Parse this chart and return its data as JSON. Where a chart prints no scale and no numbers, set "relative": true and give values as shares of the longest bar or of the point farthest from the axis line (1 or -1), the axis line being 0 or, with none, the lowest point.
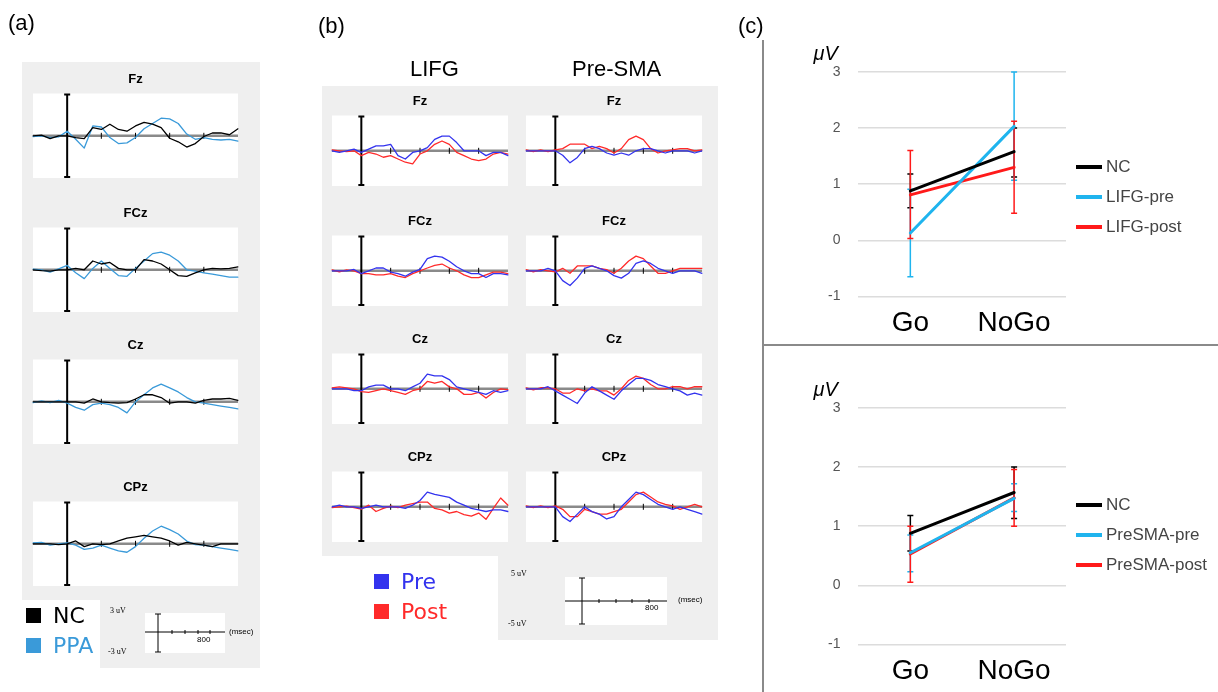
{
  "chart_data": [
    {
      "type": "line",
      "title": "Fz",
      "relative": true,
      "marker": "none",
      "line_style": "solid",
      "annotations": [
        "(a)"
      ],
      "categories": [
        null,
        null,
        null,
        null,
        null,
        null,
        null,
        null,
        null,
        null,
        null,
        null,
        null,
        null,
        null,
        null,
        null,
        null,
        null,
        null,
        null,
        null,
        null,
        null,
        null
      ],
      "series": [
        {
          "color": "#000000",
          "values": [
            0,
            0.04,
            -0.16,
            0,
            0,
            -0.1,
            -0.16,
            0.46,
            0.36,
            0.66,
            0.36,
            0.26,
            0.56,
            0.76,
            0.66,
            0.46,
            -0.14,
            -0.34,
            -0.64,
            -0.44,
            -0.04,
            0.16,
            0.16,
            0.06,
            0.4
          ]
        },
        {
          "color": "#3a9ad9",
          "values": [
            -0.04,
            0,
            -0.1,
            -0.06,
            0.26,
            -0.2,
            -0.7,
            0.56,
            0.5,
            -0.1,
            -0.44,
            -0.4,
            -0.1,
            0.4,
            0.7,
            1,
            0.96,
            0.7,
            0.1,
            -0.2,
            -0.1,
            -0.2,
            -0.24,
            -0.2,
            -0.3
          ]
        }
      ]
    },
    {
      "type": "line",
      "title": "FCz",
      "relative": true,
      "marker": "none",
      "line_style": "solid",
      "categories": [
        null,
        null,
        null,
        null,
        null,
        null,
        null,
        null,
        null,
        null,
        null,
        null,
        null,
        null,
        null,
        null,
        null,
        null,
        null,
        null,
        null,
        null,
        null,
        null,
        null
      ],
      "series": [
        {
          "color": "#000000",
          "values": [
            0,
            -0.05,
            -0.08,
            0,
            0,
            0.08,
            0,
            0.5,
            0.33,
            0.42,
            0.08,
            0,
            0,
            0.58,
            0.5,
            0.33,
            0,
            -0.33,
            -0.37,
            -0.17,
            0,
            0.08,
            0.05,
            0.08,
            0.17
          ]
        },
        {
          "color": "#3a9ad9",
          "values": [
            0.04,
            0,
            -0.13,
            0.05,
            0.25,
            -0.17,
            -0.5,
            0.08,
            0.5,
            0.08,
            -0.33,
            -0.37,
            0.08,
            0.5,
            0.92,
            1,
            0.83,
            0.5,
            0,
            -0.08,
            -0.17,
            -0.25,
            -0.33,
            -0.42,
            -0.42
          ]
        }
      ]
    },
    {
      "type": "line",
      "title": "Cz",
      "relative": true,
      "marker": "none",
      "line_style": "solid",
      "categories": [
        null,
        null,
        null,
        null,
        null,
        null,
        null,
        null,
        null,
        null,
        null,
        null,
        null,
        null,
        null,
        null,
        null,
        null,
        null,
        null,
        null,
        null,
        null,
        null,
        null
      ],
      "series": [
        {
          "color": "#000000",
          "values": [
            0,
            0,
            0,
            0,
            0,
            0,
            -0.08,
            0.16,
            0,
            -0.05,
            -0.08,
            -0.05,
            0.16,
            0.4,
            0.4,
            0.24,
            -0.08,
            0,
            0,
            -0.08,
            0.08,
            0.16,
            0.16,
            0.19,
            0.08
          ]
        },
        {
          "color": "#3a9ad9",
          "values": [
            -0.05,
            0.05,
            -0.05,
            0.08,
            -0.08,
            -0.32,
            -0.48,
            -0.16,
            -0.08,
            -0.16,
            -0.32,
            -0.63,
            0,
            0.4,
            0.79,
            1,
            0.79,
            0.56,
            0.24,
            0,
            -0.08,
            -0.16,
            -0.24,
            -0.32,
            -0.4
          ]
        }
      ]
    },
    {
      "type": "line",
      "title": "CPz",
      "relative": true,
      "marker": "none",
      "line_style": "solid",
      "legend": "bottom",
      "annotations": [
        "3 uV",
        "-3 uV",
        "800",
        "(msec)"
      ],
      "categories": [
        null,
        null,
        null,
        null,
        null,
        null,
        null,
        null,
        null,
        null,
        null,
        null,
        null,
        null,
        null,
        null,
        null,
        null,
        null,
        null,
        null,
        null,
        null,
        null,
        null
      ],
      "series": [
        {
          "name": "NC",
          "color": "#000000",
          "values": [
            0,
            0,
            0,
            -0.05,
            0,
            0.16,
            -0.16,
            0,
            -0.05,
            0,
            0.16,
            0.32,
            0.4,
            0.48,
            0.4,
            0.32,
            0.16,
            -0.08,
            0.08,
            0,
            -0.08,
            -0.16,
            0,
            0,
            0
          ]
        },
        {
          "name": "PPA",
          "color": "#3a9ad9",
          "values": [
            0.05,
            0.08,
            -0.08,
            0,
            0.05,
            -0.08,
            -0.32,
            -0.24,
            -0.08,
            -0.24,
            -0.4,
            -0.48,
            -0.16,
            0.32,
            0.73,
            1,
            0.81,
            0.56,
            0.16,
            -0.05,
            -0.08,
            -0.16,
            -0.24,
            -0.32,
            -0.4
          ]
        }
      ]
    },
    {
      "type": "line",
      "title": "Fz",
      "relative": true,
      "marker": "none",
      "line_style": "solid",
      "annotations": [
        "(b)",
        "LIFG"
      ],
      "categories": [
        null,
        null,
        null,
        null,
        null,
        null,
        null,
        null,
        null,
        null,
        null,
        null,
        null,
        null,
        null,
        null,
        null,
        null,
        null,
        null,
        null,
        null,
        null,
        null,
        null
      ],
      "series": [
        {
          "color": "#3333ee",
          "values": [
            0,
            -0.11,
            0,
            0.11,
            -0.11,
            0.11,
            0.33,
            0.33,
            0.44,
            -0.33,
            -0.56,
            -0.11,
            0,
            0.22,
            0.78,
            1,
            1,
            0.56,
            0,
            0,
            0,
            -0.33,
            -0.11,
            -0.11,
            -0.33
          ]
        },
        {
          "color": "#ff2a2a",
          "values": [
            0.06,
            0,
            -0.06,
            0,
            -0.33,
            -0.11,
            -0.22,
            -0.44,
            -0.33,
            -0.56,
            -0.78,
            -0.89,
            -0.22,
            0,
            0.44,
            0.67,
            0.44,
            -0.11,
            -0.33,
            -0.56,
            -0.67,
            -0.56,
            -0.22,
            -0.11,
            -0.22
          ]
        }
      ]
    },
    {
      "type": "line",
      "title": "Fz",
      "relative": true,
      "marker": "none",
      "line_style": "solid",
      "annotations": [
        "Pre-SMA"
      ],
      "categories": [
        null,
        null,
        null,
        null,
        null,
        null,
        null,
        null,
        null,
        null,
        null,
        null,
        null,
        null,
        null,
        null,
        null,
        null,
        null,
        null,
        null,
        null,
        null,
        null,
        null
      ],
      "series": [
        {
          "color": "#3333ee",
          "values": [
            0,
            0,
            0,
            0,
            0,
            -0.3,
            -0.82,
            -0.45,
            0.15,
            0.3,
            0.15,
            -0.15,
            -0.3,
            -0.15,
            -0.3,
            0,
            0.15,
            0.15,
            0,
            -0.15,
            0,
            0,
            0,
            -0.15,
            0
          ]
        },
        {
          "color": "#ff2a2a",
          "values": [
            0.06,
            -0.06,
            0.06,
            -0.06,
            0.06,
            0.15,
            0.45,
            0.45,
            0.45,
            0.15,
            0.3,
            0.15,
            -0.15,
            0.15,
            0.76,
            1,
            0.76,
            0.15,
            -0.15,
            0,
            0.06,
            0.15,
            0.15,
            0,
            0.06
          ]
        }
      ]
    },
    {
      "type": "line",
      "title": "FCz",
      "relative": true,
      "marker": "none",
      "line_style": "solid",
      "categories": [
        null,
        null,
        null,
        null,
        null,
        null,
        null,
        null,
        null,
        null,
        null,
        null,
        null,
        null,
        null,
        null,
        null,
        null,
        null,
        null,
        null,
        null,
        null,
        null,
        null
      ],
      "series": [
        {
          "color": "#3333ee",
          "values": [
            0,
            0,
            0,
            0.09,
            -0.19,
            0,
            0.19,
            0.19,
            -0.09,
            -0.19,
            -0.37,
            -0.09,
            0.09,
            0.83,
            1,
            0.93,
            0.65,
            0.28,
            0,
            -0.19,
            -0.19,
            -0.46,
            -0.19,
            -0.19,
            -0.28
          ]
        },
        {
          "color": "#ff2a2a",
          "values": [
            0.07,
            -0.07,
            0.07,
            0,
            -0.19,
            -0.19,
            -0.28,
            -0.28,
            -0.19,
            -0.37,
            -0.46,
            -0.19,
            0,
            0.19,
            0.37,
            0.46,
            0.19,
            0,
            -0.28,
            -0.46,
            -0.46,
            -0.28,
            -0.09,
            -0.09,
            -0.19
          ]
        }
      ]
    },
    {
      "type": "line",
      "title": "FCz",
      "relative": true,
      "marker": "none",
      "line_style": "solid",
      "categories": [
        null,
        null,
        null,
        null,
        null,
        null,
        null,
        null,
        null,
        null,
        null,
        null,
        null,
        null,
        null,
        null,
        null,
        null,
        null,
        null,
        null,
        null,
        null,
        null,
        null
      ],
      "series": [
        {
          "color": "#3333ee",
          "values": [
            0,
            0,
            0,
            0.17,
            0,
            -0.67,
            -1,
            -0.5,
            0.17,
            0.33,
            0.17,
            0,
            -0.33,
            -0.5,
            -0.17,
            0.5,
            0.67,
            0.5,
            0.17,
            0,
            -0.17,
            0,
            0,
            0,
            -0.17
          ]
        },
        {
          "color": "#ff2a2a",
          "values": [
            0.08,
            -0.08,
            0.08,
            0,
            -0.08,
            0.17,
            -0.17,
            0.33,
            0.33,
            0.33,
            0.17,
            0.08,
            -0.17,
            0.17,
            0.67,
            1,
            0.83,
            0.33,
            -0.17,
            -0.17,
            0,
            0.17,
            0.17,
            0.17,
            0.17
          ]
        }
      ]
    },
    {
      "type": "line",
      "title": "Cz",
      "relative": true,
      "marker": "none",
      "line_style": "solid",
      "categories": [
        null,
        null,
        null,
        null,
        null,
        null,
        null,
        null,
        null,
        null,
        null,
        null,
        null,
        null,
        null,
        null,
        null,
        null,
        null,
        null,
        null,
        null,
        null,
        null,
        null
      ],
      "series": [
        {
          "color": "#3333ee",
          "values": [
            0,
            0,
            0,
            -0.13,
            -0.13,
            0.13,
            0.25,
            0.25,
            0,
            0,
            -0.13,
            0.13,
            0.38,
            1,
            0.88,
            0.88,
            0.63,
            0.13,
            0,
            -0.13,
            -0.25,
            -0.38,
            -0.13,
            -0.25,
            -0.13
          ]
        },
        {
          "color": "#ff2a2a",
          "values": [
            0.06,
            0.13,
            0.06,
            0,
            -0.19,
            -0.25,
            -0.13,
            0,
            -0.13,
            -0.25,
            -0.38,
            -0.13,
            0,
            0.5,
            0.38,
            0.5,
            0.13,
            0,
            -0.38,
            -0.38,
            -0.25,
            -0.63,
            -0.25,
            0,
            -0.06
          ]
        }
      ]
    },
    {
      "type": "line",
      "title": "Cz",
      "relative": true,
      "marker": "none",
      "line_style": "solid",
      "categories": [
        null,
        null,
        null,
        null,
        null,
        null,
        null,
        null,
        null,
        null,
        null,
        null,
        null,
        null,
        null,
        null,
        null,
        null,
        null,
        null,
        null,
        null,
        null,
        null,
        null
      ],
      "series": [
        {
          "color": "#3333ee",
          "values": [
            0,
            0,
            0,
            0.14,
            -0.14,
            -0.43,
            -0.71,
            -1,
            -0.29,
            0.14,
            -0.14,
            -0.43,
            -0.71,
            -0.14,
            0.29,
            0.71,
            0.71,
            0.57,
            0.29,
            0.14,
            0,
            -0.14,
            -0.43,
            -0.29,
            -0.43
          ]
        },
        {
          "color": "#ff2a2a",
          "values": [
            0.07,
            -0.07,
            0.07,
            0.07,
            0,
            -0.29,
            -0.29,
            0,
            -0.14,
            0,
            -0.14,
            -0.14,
            -0.43,
            0,
            0.57,
            0.86,
            0.71,
            0.29,
            0,
            0,
            0.14,
            0.14,
            0,
            0.14,
            0.14
          ]
        }
      ]
    },
    {
      "type": "line",
      "title": "CPz",
      "relative": true,
      "marker": "none",
      "line_style": "solid",
      "legend": "bottom",
      "categories": [
        null,
        null,
        null,
        null,
        null,
        null,
        null,
        null,
        null,
        null,
        null,
        null,
        null,
        null,
        null,
        null,
        null,
        null,
        null,
        null,
        null,
        null,
        null,
        null,
        null
      ],
      "series": [
        {
          "name": "Pre",
          "color": "#3333ee",
          "values": [
            0,
            0.11,
            0,
            0,
            -0.11,
            0,
            0.11,
            0,
            0,
            0,
            -0.11,
            0.11,
            0.43,
            1,
            0.85,
            0.74,
            0.64,
            0.32,
            0.11,
            -0.11,
            -0.21,
            -0.32,
            -0.21,
            -0.21,
            -0.32
          ]
        },
        {
          "name": "Post",
          "color": "#ff2a2a",
          "values": [
            -0.05,
            0,
            0.05,
            -0.05,
            -0.16,
            0.11,
            -0.32,
            -0.11,
            0.05,
            -0.05,
            0.11,
            0.21,
            0.32,
            0.32,
            -0.11,
            -0.21,
            -0.43,
            -0.32,
            -0.53,
            -0.64,
            -0.43,
            -0.85,
            -0.11,
            0.6,
            0.11
          ]
        }
      ]
    },
    {
      "type": "line",
      "title": "CPz",
      "relative": true,
      "marker": "none",
      "line_style": "solid",
      "annotations": [
        "5 uV",
        "-5 uV",
        "800",
        "(msec)"
      ],
      "categories": [
        null,
        null,
        null,
        null,
        null,
        null,
        null,
        null,
        null,
        null,
        null,
        null,
        null,
        null,
        null,
        null,
        null,
        null,
        null,
        null,
        null,
        null,
        null,
        null,
        null
      ],
      "series": [
        {
          "color": "#3333ee",
          "values": [
            0,
            0,
            0,
            0,
            0,
            -0.67,
            -1,
            -0.5,
            0,
            -0.33,
            -0.5,
            -0.83,
            -0.67,
            0,
            0.5,
            1,
            0.83,
            0.5,
            0.17,
            0,
            -0.17,
            0,
            -0.17,
            -0.33,
            -0.5
          ]
        },
        {
          "color": "#ff2a2a",
          "values": [
            0.06,
            -0.06,
            0.06,
            -0.06,
            0.06,
            -0.17,
            -0.67,
            -0.67,
            -0.17,
            -0.33,
            -0.5,
            -0.5,
            -0.33,
            -0.17,
            0.33,
            0.83,
            1,
            0.67,
            0.33,
            0.17,
            0.06,
            -0.17,
            0,
            0.17,
            0
          ]
        }
      ]
    },
    {
      "type": "line",
      "categories": [
        "Go",
        "NoGo"
      ],
      "ylabel": "μV",
      "ylim": [
        -1,
        3
      ],
      "yticks": [
        -1,
        0,
        1,
        2,
        3
      ],
      "grid": "y",
      "legend": "right",
      "marker": "none",
      "line_style": "solid",
      "annotations": [
        "(c)"
      ],
      "series": [
        {
          "name": "NC",
          "color": "#000000",
          "values": [
            0.88,
            1.58
          ],
          "errors": [
            [
              0.58,
              1.18
            ],
            [
              1.13,
              2.0
            ]
          ]
        },
        {
          "name": "LIFG-pre",
          "color": "#1fb4ee",
          "values": [
            0.13,
            2.03
          ],
          "errors": [
            [
              -0.65,
              0.91
            ],
            [
              1.07,
              3.0
            ]
          ]
        },
        {
          "name": "LIFG-post",
          "color": "#ff1a1a",
          "values": [
            0.81,
            1.3
          ],
          "errors": [
            [
              0.03,
              1.6
            ],
            [
              0.48,
              2.12
            ]
          ]
        }
      ]
    },
    {
      "type": "line",
      "categories": [
        "Go",
        "NoGo"
      ],
      "ylabel": "μV",
      "ylim": [
        -1,
        3
      ],
      "yticks": [
        -1,
        0,
        1,
        2,
        3
      ],
      "grid": "y",
      "legend": "right",
      "marker": "none",
      "line_style": "solid",
      "series": [
        {
          "name": "NC",
          "color": "#000000",
          "values": [
            0.88,
            1.57
          ],
          "errors": [
            [
              0.58,
              1.18
            ],
            [
              1.13,
              2.0
            ]
          ]
        },
        {
          "name": "PreSMA-pre",
          "color": "#1fb4ee",
          "values": [
            0.55,
            1.47
          ],
          "errors": [
            [
              0.23,
              0.85
            ],
            [
              1.25,
              1.72
            ]
          ]
        },
        {
          "name": "PreSMA-post",
          "color": "#ff1a1a",
          "values": [
            0.53,
            1.48
          ],
          "errors": [
            [
              0.05,
              1.0
            ],
            [
              1.0,
              1.96
            ]
          ]
        }
      ]
    }
  ]
}
